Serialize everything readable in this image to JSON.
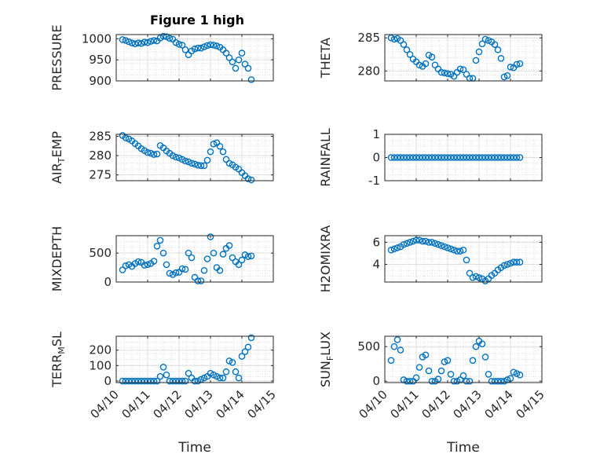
{
  "figure": {
    "title": "Figure 1 high"
  },
  "chart_data": [
    {
      "id": "p1",
      "type": "scatter",
      "ylabel": "PRESSURE",
      "ylabel_sub": "",
      "ylabel_tail": "",
      "ylim": [
        900,
        1010
      ],
      "yticks": [
        {
          "v": 900,
          "l": "900"
        },
        {
          "v": 950,
          "l": "950"
        },
        {
          "v": 1000,
          "l": "1000"
        }
      ],
      "xticks_shown": false,
      "x": [
        0.2,
        0.3,
        0.4,
        0.5,
        0.6,
        0.7,
        0.8,
        0.9,
        1.0,
        1.1,
        1.2,
        1.3,
        1.4,
        1.5,
        1.6,
        1.7,
        1.8,
        1.9,
        2.0,
        2.1,
        2.2,
        2.3,
        2.4,
        2.5,
        2.6,
        2.7,
        2.8,
        2.9,
        3.0,
        3.1,
        3.2,
        3.3,
        3.4,
        3.5,
        3.6,
        3.7,
        3.8,
        3.9,
        4.0,
        4.1,
        4.2,
        4.3
      ],
      "y": [
        998,
        996,
        993,
        990,
        988,
        990,
        989,
        992,
        991,
        994,
        996,
        995,
        1002,
        1006,
        1005,
        1001,
        999,
        991,
        987,
        985,
        974,
        962,
        971,
        976,
        978,
        978,
        981,
        984,
        986,
        985,
        983,
        980,
        974,
        966,
        955,
        945,
        930,
        950,
        966,
        940,
        930,
        903
      ]
    },
    {
      "id": "p2",
      "type": "scatter",
      "ylabel": "THETA",
      "ylabel_sub": "",
      "ylabel_tail": "",
      "ylim": [
        278.5,
        285.5
      ],
      "yticks": [
        {
          "v": 280,
          "l": "280"
        },
        {
          "v": 285,
          "l": "285"
        }
      ],
      "xticks_shown": false,
      "x": [
        0.2,
        0.3,
        0.4,
        0.5,
        0.6,
        0.7,
        0.8,
        0.9,
        1.0,
        1.1,
        1.2,
        1.3,
        1.4,
        1.5,
        1.6,
        1.7,
        1.8,
        1.9,
        2.0,
        2.1,
        2.2,
        2.3,
        2.4,
        2.5,
        2.6,
        2.7,
        2.8,
        2.9,
        3.0,
        3.1,
        3.2,
        3.3,
        3.4,
        3.5,
        3.6,
        3.7,
        3.8,
        3.9,
        4.0,
        4.1,
        4.2,
        4.3
      ],
      "y": [
        285,
        284.8,
        284.9,
        284.6,
        284.0,
        283.2,
        282.5,
        281.8,
        281.4,
        280.9,
        280.7,
        281.1,
        282.4,
        282.1,
        280.9,
        280.3,
        279.8,
        279.7,
        279.6,
        279.5,
        279.2,
        279.8,
        280.3,
        280.2,
        279.5,
        278.9,
        278.9,
        281.6,
        282.9,
        284.1,
        284.8,
        284.6,
        284.4,
        284.0,
        283.2,
        281.9,
        279.1,
        279.3,
        280.6,
        280.5,
        281.0,
        281.1
      ]
    },
    {
      "id": "p3",
      "type": "scatter",
      "ylabel": "AIR",
      "ylabel_sub": "T",
      "ylabel_tail": "EMP",
      "ylim": [
        273.5,
        285.5
      ],
      "yticks": [
        {
          "v": 275,
          "l": "275"
        },
        {
          "v": 280,
          "l": "280"
        },
        {
          "v": 285,
          "l": "285"
        }
      ],
      "xticks_shown": false,
      "x": [
        0.2,
        0.3,
        0.4,
        0.5,
        0.6,
        0.7,
        0.8,
        0.9,
        1.0,
        1.1,
        1.2,
        1.3,
        1.4,
        1.5,
        1.6,
        1.7,
        1.8,
        1.9,
        2.0,
        2.1,
        2.2,
        2.3,
        2.4,
        2.5,
        2.6,
        2.7,
        2.8,
        2.9,
        3.0,
        3.1,
        3.2,
        3.3,
        3.4,
        3.5,
        3.6,
        3.7,
        3.8,
        3.9,
        4.0,
        4.1,
        4.2,
        4.3
      ],
      "y": [
        285.2,
        284.6,
        284.3,
        283.8,
        283.1,
        282.5,
        281.8,
        281.3,
        280.8,
        280.6,
        280.3,
        280.4,
        282.6,
        282.0,
        281.2,
        280.6,
        280.0,
        279.6,
        279.4,
        279.0,
        278.6,
        278.4,
        278.0,
        277.8,
        277.5,
        277.4,
        277.4,
        278.8,
        281.0,
        283.0,
        283.3,
        282.4,
        281.0,
        279.0,
        278.0,
        277.6,
        277.0,
        276.5,
        275.6,
        274.8,
        274.0,
        273.7
      ]
    },
    {
      "id": "p4",
      "type": "scatter",
      "ylabel": "RAINFALL",
      "ylabel_sub": "",
      "ylabel_tail": "",
      "ylim": [
        -1,
        1
      ],
      "yticks": [
        {
          "v": -1,
          "l": "-1"
        },
        {
          "v": 0,
          "l": "0"
        },
        {
          "v": 1,
          "l": "1"
        }
      ],
      "xticks_shown": false,
      "x": [
        0.2,
        0.3,
        0.4,
        0.5,
        0.6,
        0.7,
        0.8,
        0.9,
        1.0,
        1.1,
        1.2,
        1.3,
        1.4,
        1.5,
        1.6,
        1.7,
        1.8,
        1.9,
        2.0,
        2.1,
        2.2,
        2.3,
        2.4,
        2.5,
        2.6,
        2.7,
        2.8,
        2.9,
        3.0,
        3.1,
        3.2,
        3.3,
        3.4,
        3.5,
        3.6,
        3.7,
        3.8,
        3.9,
        4.0,
        4.1,
        4.2,
        4.3
      ],
      "y": [
        0,
        0,
        0,
        0,
        0,
        0,
        0,
        0,
        0,
        0,
        0,
        0,
        0,
        0,
        0,
        0,
        0,
        0,
        0,
        0,
        0,
        0,
        0,
        0,
        0,
        0,
        0,
        0,
        0,
        0,
        0,
        0,
        0,
        0,
        0,
        0,
        0,
        0,
        0,
        0,
        0,
        0
      ]
    },
    {
      "id": "p5",
      "type": "scatter",
      "ylabel": "MIXDEPTH",
      "ylabel_sub": "",
      "ylabel_tail": "",
      "ylim": [
        0,
        800
      ],
      "yticks": [
        {
          "v": 0,
          "l": "0"
        },
        {
          "v": 500,
          "l": "500"
        }
      ],
      "xticks_shown": false,
      "x": [
        0.2,
        0.3,
        0.4,
        0.5,
        0.6,
        0.7,
        0.8,
        0.9,
        1.0,
        1.1,
        1.2,
        1.3,
        1.4,
        1.5,
        1.6,
        1.7,
        1.8,
        1.9,
        2.0,
        2.1,
        2.2,
        2.3,
        2.4,
        2.5,
        2.6,
        2.7,
        2.8,
        2.9,
        3.0,
        3.1,
        3.2,
        3.3,
        3.4,
        3.5,
        3.6,
        3.7,
        3.8,
        3.9,
        4.0,
        4.1,
        4.2,
        4.3
      ],
      "y": [
        210,
        280,
        300,
        270,
        320,
        350,
        340,
        290,
        300,
        320,
        360,
        620,
        720,
        500,
        300,
        150,
        130,
        160,
        170,
        230,
        220,
        500,
        420,
        80,
        20,
        20,
        200,
        400,
        780,
        500,
        250,
        200,
        480,
        580,
        630,
        420,
        350,
        300,
        380,
        470,
        440,
        450
      ]
    },
    {
      "id": "p6",
      "type": "scatter",
      "ylabel": "H2OMIXRA",
      "ylabel_sub": "",
      "ylabel_tail": "",
      "ylim": [
        2.4,
        6.6
      ],
      "yticks": [
        {
          "v": 4,
          "l": "4"
        },
        {
          "v": 6,
          "l": "6"
        }
      ],
      "xticks_shown": false,
      "x": [
        0.2,
        0.3,
        0.4,
        0.5,
        0.6,
        0.7,
        0.8,
        0.9,
        1.0,
        1.1,
        1.2,
        1.3,
        1.4,
        1.5,
        1.6,
        1.7,
        1.8,
        1.9,
        2.0,
        2.1,
        2.2,
        2.3,
        2.4,
        2.5,
        2.6,
        2.7,
        2.8,
        2.9,
        3.0,
        3.1,
        3.2,
        3.3,
        3.4,
        3.5,
        3.6,
        3.7,
        3.8,
        3.9,
        4.0,
        4.1,
        4.2,
        4.3
      ],
      "y": [
        5.3,
        5.4,
        5.5,
        5.6,
        5.8,
        5.9,
        6.0,
        6.1,
        6.2,
        6.2,
        6.1,
        6.1,
        6.0,
        6.0,
        5.9,
        5.8,
        5.7,
        5.6,
        5.5,
        5.4,
        5.3,
        5.2,
        5.2,
        5.3,
        4.4,
        3.2,
        2.8,
        2.9,
        2.8,
        2.7,
        2.5,
        2.7,
        3.0,
        3.2,
        3.5,
        3.7,
        3.9,
        4.0,
        4.1,
        4.2,
        4.2,
        4.2
      ]
    },
    {
      "id": "p7",
      "type": "scatter",
      "ylabel": "TERR",
      "ylabel_sub": "M",
      "ylabel_tail": "SL",
      "ylim": [
        -10,
        290
      ],
      "yticks": [
        {
          "v": 0,
          "l": "0"
        },
        {
          "v": 100,
          "l": "100"
        },
        {
          "v": 200,
          "l": "200"
        }
      ],
      "xticks_shown": false,
      "x": [
        0.2,
        0.3,
        0.4,
        0.5,
        0.6,
        0.7,
        0.8,
        0.9,
        1.0,
        1.1,
        1.2,
        1.3,
        1.4,
        1.5,
        1.6,
        1.7,
        1.8,
        1.9,
        2.0,
        2.1,
        2.2,
        2.3,
        2.4,
        2.5,
        2.6,
        2.7,
        2.8,
        2.9,
        3.0,
        3.1,
        3.2,
        3.3,
        3.4,
        3.5,
        3.6,
        3.7,
        3.8,
        3.9,
        4.0,
        4.1,
        4.2,
        4.3
      ],
      "y": [
        0,
        0,
        0,
        0,
        0,
        0,
        0,
        0,
        0,
        0,
        0,
        0,
        30,
        90,
        40,
        0,
        0,
        0,
        0,
        0,
        0,
        50,
        20,
        0,
        0,
        10,
        20,
        30,
        50,
        40,
        30,
        20,
        20,
        60,
        130,
        120,
        60,
        20,
        160,
        190,
        220,
        280
      ]
    },
    {
      "id": "p8",
      "type": "scatter",
      "ylabel": "SUN",
      "ylabel_sub": "F",
      "ylabel_tail": "LUX",
      "ylim": [
        -20,
        650
      ],
      "yticks": [
        {
          "v": 0,
          "l": "0"
        },
        {
          "v": 500,
          "l": "500"
        }
      ],
      "xticks_shown": false,
      "x": [
        0.2,
        0.3,
        0.4,
        0.5,
        0.6,
        0.7,
        0.8,
        0.9,
        1.0,
        1.1,
        1.2,
        1.3,
        1.4,
        1.5,
        1.6,
        1.7,
        1.8,
        1.9,
        2.0,
        2.1,
        2.2,
        2.3,
        2.4,
        2.5,
        2.6,
        2.7,
        2.8,
        2.9,
        3.0,
        3.1,
        3.2,
        3.3,
        3.4,
        3.5,
        3.6,
        3.7,
        3.8,
        3.9,
        4.0,
        4.1,
        4.2,
        4.3
      ],
      "y": [
        300,
        500,
        600,
        450,
        20,
        0,
        0,
        0,
        50,
        200,
        350,
        380,
        150,
        0,
        0,
        30,
        150,
        280,
        300,
        100,
        0,
        0,
        20,
        80,
        0,
        0,
        300,
        500,
        580,
        540,
        350,
        100,
        0,
        0,
        0,
        0,
        0,
        20,
        40,
        130,
        110,
        90
      ]
    }
  ],
  "xaxis": {
    "xlim": [
      0,
      5
    ],
    "ticks": [
      {
        "v": 0,
        "l": "04/10"
      },
      {
        "v": 1,
        "l": "04/11"
      },
      {
        "v": 2,
        "l": "04/12"
      },
      {
        "v": 3,
        "l": "04/13"
      },
      {
        "v": 4,
        "l": "04/14"
      },
      {
        "v": 5,
        "l": "04/15"
      }
    ],
    "label": "Time"
  },
  "colors": {
    "series": "#0072BD",
    "axes": "#262626",
    "grid": "#dfdfdf"
  }
}
